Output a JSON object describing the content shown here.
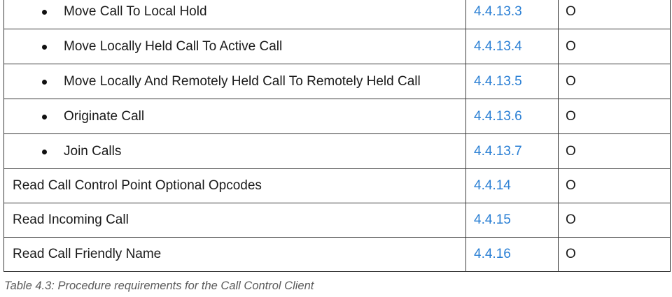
{
  "rows": [
    {
      "name": "Move Call To Local Hold",
      "section": "4.4.13.3",
      "requirement": "O",
      "sub": true
    },
    {
      "name": "Move Locally Held Call To Active Call",
      "section": "4.4.13.4",
      "requirement": "O",
      "sub": true
    },
    {
      "name": "Move Locally And Remotely Held Call To Remotely Held Call",
      "section": "4.4.13.5",
      "requirement": "O",
      "sub": true
    },
    {
      "name": "Originate Call",
      "section": "4.4.13.6",
      "requirement": "O",
      "sub": true
    },
    {
      "name": "Join Calls",
      "section": "4.4.13.7",
      "requirement": "O",
      "sub": true
    },
    {
      "name": "Read Call Control Point Optional Opcodes",
      "section": "4.4.14",
      "requirement": "O",
      "sub": false
    },
    {
      "name": "Read Incoming Call",
      "section": "4.4.15",
      "requirement": "O",
      "sub": false
    },
    {
      "name": "Read Call Friendly Name",
      "section": "4.4.16",
      "requirement": "O",
      "sub": false
    }
  ],
  "caption": "Table 4.3: Procedure requirements for the Call Control Client"
}
